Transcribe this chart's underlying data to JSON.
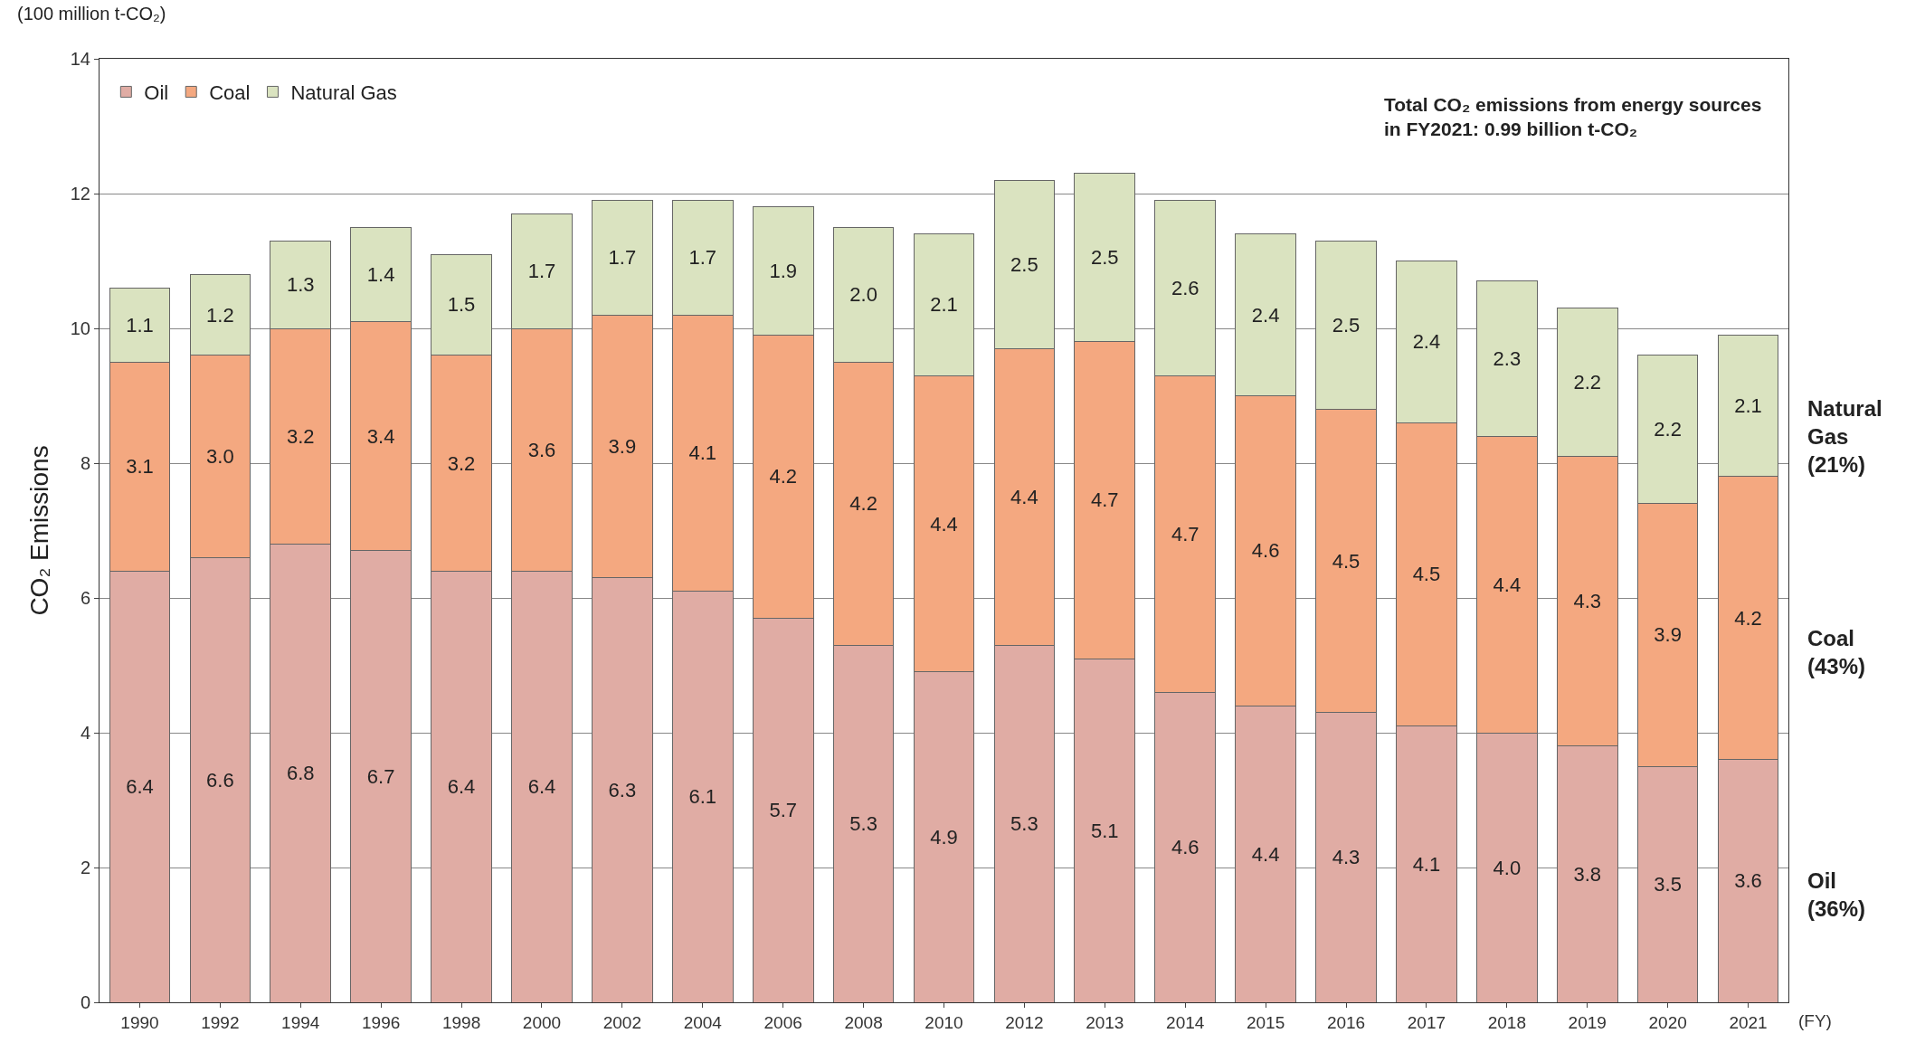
{
  "chart_data": {
    "type": "bar",
    "stacked": true,
    "ylabel": "CO₂ Emissions",
    "xlabel": "(FY)",
    "categories": [
      "1990",
      "1992",
      "1994",
      "1996",
      "1998",
      "2000",
      "2002",
      "2004",
      "2006",
      "2008",
      "2010",
      "2012",
      "2013",
      "2014",
      "2015",
      "2016",
      "2017",
      "2018",
      "2019",
      "2020",
      "2021"
    ],
    "series": [
      {
        "name": "Oil",
        "color": "#e0aca4",
        "values": [
          6.4,
          6.6,
          6.8,
          6.7,
          6.4,
          6.4,
          6.3,
          6.1,
          5.7,
          5.3,
          4.9,
          5.3,
          5.1,
          4.6,
          4.4,
          4.3,
          4.1,
          4.0,
          3.8,
          3.5,
          3.6
        ],
        "value_labels": [
          "6.4",
          "6.6",
          "6.8",
          "6.7",
          "6.4",
          "6.4",
          "6.3",
          "6.1",
          "5.7",
          "5.3",
          "4.9",
          "5.3",
          "5.1",
          "4.6",
          "4.4",
          "4.3",
          "4.1",
          "4.0",
          "3.8",
          "3.5",
          "3.6"
        ]
      },
      {
        "name": "Coal",
        "color": "#f4a880",
        "values": [
          3.1,
          3.0,
          3.2,
          3.4,
          3.2,
          3.6,
          3.9,
          4.1,
          4.2,
          4.2,
          4.4,
          4.4,
          4.7,
          4.7,
          4.6,
          4.5,
          4.5,
          4.4,
          4.3,
          3.9,
          4.2
        ],
        "value_labels": [
          "3.1",
          "3.0",
          "3.2",
          "3.4",
          "3.2",
          "3.6",
          "3.9",
          "4.1",
          "4.2",
          "4.2",
          "4.4",
          "4.4",
          "4.7",
          "4.7",
          "4.6",
          "4.5",
          "4.5",
          "4.4",
          "4.3",
          "3.9",
          "4.2"
        ]
      },
      {
        "name": "Natural Gas",
        "color": "#dae3c0",
        "values": [
          1.1,
          1.2,
          1.3,
          1.4,
          1.5,
          1.7,
          1.7,
          1.7,
          1.9,
          2.0,
          2.1,
          2.5,
          2.5,
          2.6,
          2.4,
          2.5,
          2.4,
          2.3,
          2.2,
          2.2,
          2.1
        ],
        "value_labels": [
          "1.1",
          "1.2",
          "1.3",
          "1.4",
          "1.5",
          "1.7",
          "1.7",
          "1.7",
          "1.9",
          "2.0",
          "2.1",
          "2.5",
          "2.5",
          "2.6",
          "2.4",
          "2.5",
          "2.4",
          "2.3",
          "2.2",
          "2.2",
          "2.1"
        ]
      }
    ],
    "ylim": [
      0,
      14
    ],
    "yticks": [
      0,
      2,
      4,
      6,
      8,
      10,
      12,
      14
    ],
    "grid": "y",
    "legend": "top left",
    "annotations": [
      "(100 million t-CO₂)",
      "Total CO₂ emissions from energy sources\nin FY2021: 0.99 billion t-CO₂",
      "Natural\nGas\n(21%)",
      "Coal\n(43%)",
      "Oil\n(36%)"
    ]
  }
}
